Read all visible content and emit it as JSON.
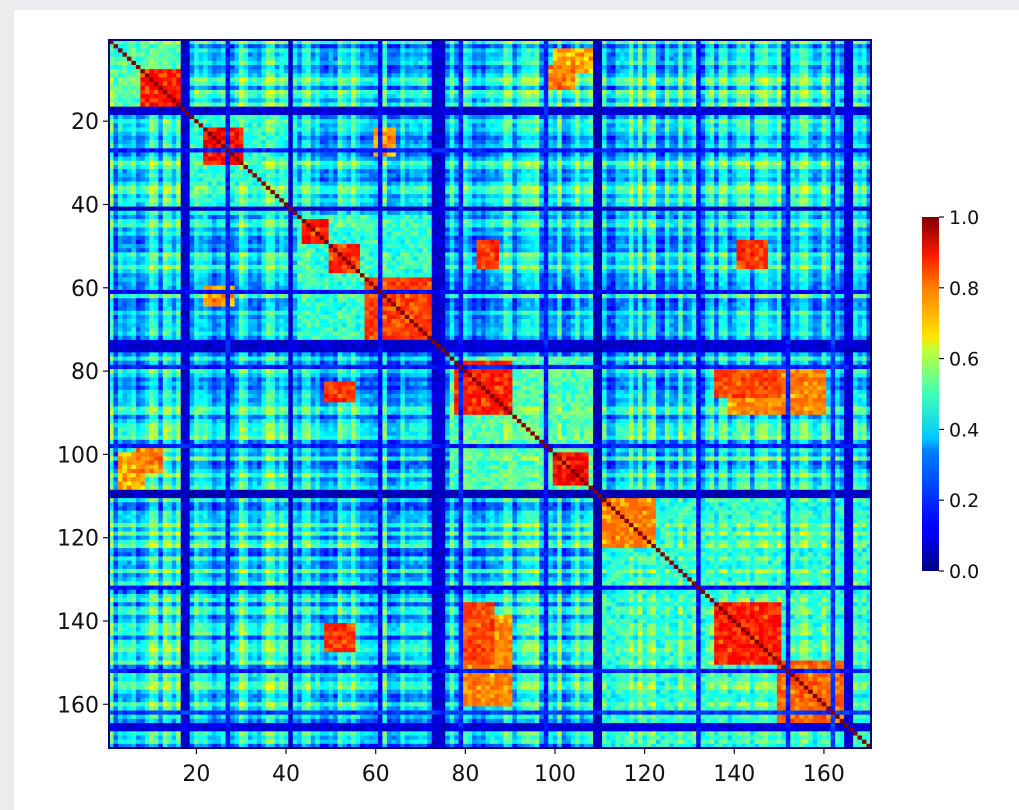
{
  "chart_data": {
    "type": "heatmap",
    "title": "",
    "xlabel": "",
    "ylabel": "",
    "n": 170,
    "x_ticks": [
      20,
      40,
      60,
      80,
      100,
      120,
      140,
      160
    ],
    "y_ticks": [
      20,
      40,
      60,
      80,
      100,
      120,
      140,
      160
    ],
    "x_tick_labels": [
      "20",
      "40",
      "60",
      "80",
      "100",
      "120",
      "140",
      "160"
    ],
    "y_tick_labels": [
      "20",
      "40",
      "60",
      "80",
      "100",
      "120",
      "140",
      "160"
    ],
    "value_range": [
      0.0,
      1.0
    ],
    "colormap": "jet",
    "diagonal_value": 1.0,
    "colorbar": {
      "ticks": [
        0.0,
        0.2,
        0.4,
        0.6,
        0.8,
        1.0
      ],
      "tick_labels": [
        "0.0",
        "0.2",
        "0.4",
        "0.6",
        "0.8",
        "1.0"
      ],
      "placement": "right"
    },
    "background_blocks": [
      {
        "rows": [
          1,
          18
        ],
        "cols": [
          1,
          18
        ],
        "value": 0.45
      },
      {
        "rows": [
          19,
          42
        ],
        "cols": [
          19,
          42
        ],
        "value": 0.4
      },
      {
        "rows": [
          43,
          74
        ],
        "cols": [
          43,
          74
        ],
        "value": 0.42
      },
      {
        "rows": [
          77,
          108
        ],
        "cols": [
          77,
          108
        ],
        "value": 0.45
      },
      {
        "rows": [
          110,
          170
        ],
        "cols": [
          110,
          170
        ],
        "value": 0.4
      }
    ],
    "hot_blocks": [
      {
        "rows": [
          8,
          16
        ],
        "cols": [
          8,
          16
        ],
        "value": 0.82
      },
      {
        "rows": [
          22,
          30
        ],
        "cols": [
          22,
          30
        ],
        "value": 0.85
      },
      {
        "rows": [
          44,
          49
        ],
        "cols": [
          44,
          49
        ],
        "value": 0.82
      },
      {
        "rows": [
          50,
          56
        ],
        "cols": [
          50,
          56
        ],
        "value": 0.8
      },
      {
        "rows": [
          58,
          72
        ],
        "cols": [
          58,
          72
        ],
        "value": 0.78
      },
      {
        "rows": [
          78,
          90
        ],
        "cols": [
          78,
          90
        ],
        "value": 0.82
      },
      {
        "rows": [
          100,
          107
        ],
        "cols": [
          100,
          107
        ],
        "value": 0.85
      },
      {
        "rows": [
          110,
          122
        ],
        "cols": [
          110,
          122
        ],
        "value": 0.72
      },
      {
        "rows": [
          136,
          150
        ],
        "cols": [
          136,
          150
        ],
        "value": 0.82
      },
      {
        "rows": [
          150,
          165
        ],
        "cols": [
          150,
          165
        ],
        "value": 0.75
      },
      {
        "rows": [
          49,
          55
        ],
        "cols": [
          83,
          87
        ],
        "value": 0.8
      },
      {
        "rows": [
          83,
          87
        ],
        "cols": [
          49,
          55
        ],
        "value": 0.8
      },
      {
        "rows": [
          49,
          55
        ],
        "cols": [
          141,
          147
        ],
        "value": 0.8
      },
      {
        "rows": [
          141,
          147
        ],
        "cols": [
          49,
          55
        ],
        "value": 0.8
      },
      {
        "rows": [
          80,
          90
        ],
        "cols": [
          139,
          160
        ],
        "value": 0.72
      },
      {
        "rows": [
          139,
          160
        ],
        "cols": [
          80,
          90
        ],
        "value": 0.72
      },
      {
        "rows": [
          136,
          150
        ],
        "cols": [
          79,
          86
        ],
        "value": 0.78
      },
      {
        "rows": [
          79,
          86
        ],
        "cols": [
          136,
          150
        ],
        "value": 0.78
      },
      {
        "rows": [
          60,
          64
        ],
        "cols": [
          22,
          28
        ],
        "value": 0.72
      },
      {
        "rows": [
          3,
          8
        ],
        "cols": [
          100,
          108
        ],
        "value": 0.7
      },
      {
        "rows": [
          99,
          104
        ],
        "cols": [
          7,
          12
        ],
        "value": 0.75
      }
    ],
    "low_bands": [
      {
        "index": [
          17,
          18
        ],
        "value": 0.05
      },
      {
        "index": [
          41,
          41
        ],
        "value": 0.04
      },
      {
        "index": [
          73,
          75
        ],
        "value": 0.05
      },
      {
        "index": [
          109,
          110
        ],
        "value": 0.03
      },
      {
        "index": [
          165,
          166
        ],
        "value": 0.06
      },
      {
        "index": [
          27,
          27
        ],
        "value": 0.12
      },
      {
        "index": [
          61,
          61
        ],
        "value": 0.1
      },
      {
        "index": [
          79,
          79
        ],
        "value": 0.12
      },
      {
        "index": [
          98,
          98
        ],
        "value": 0.12
      },
      {
        "index": [
          132,
          132
        ],
        "value": 0.1
      },
      {
        "index": [
          152,
          152
        ],
        "value": 0.12
      },
      {
        "index": [
          162,
          162
        ],
        "value": 0.15
      }
    ]
  }
}
